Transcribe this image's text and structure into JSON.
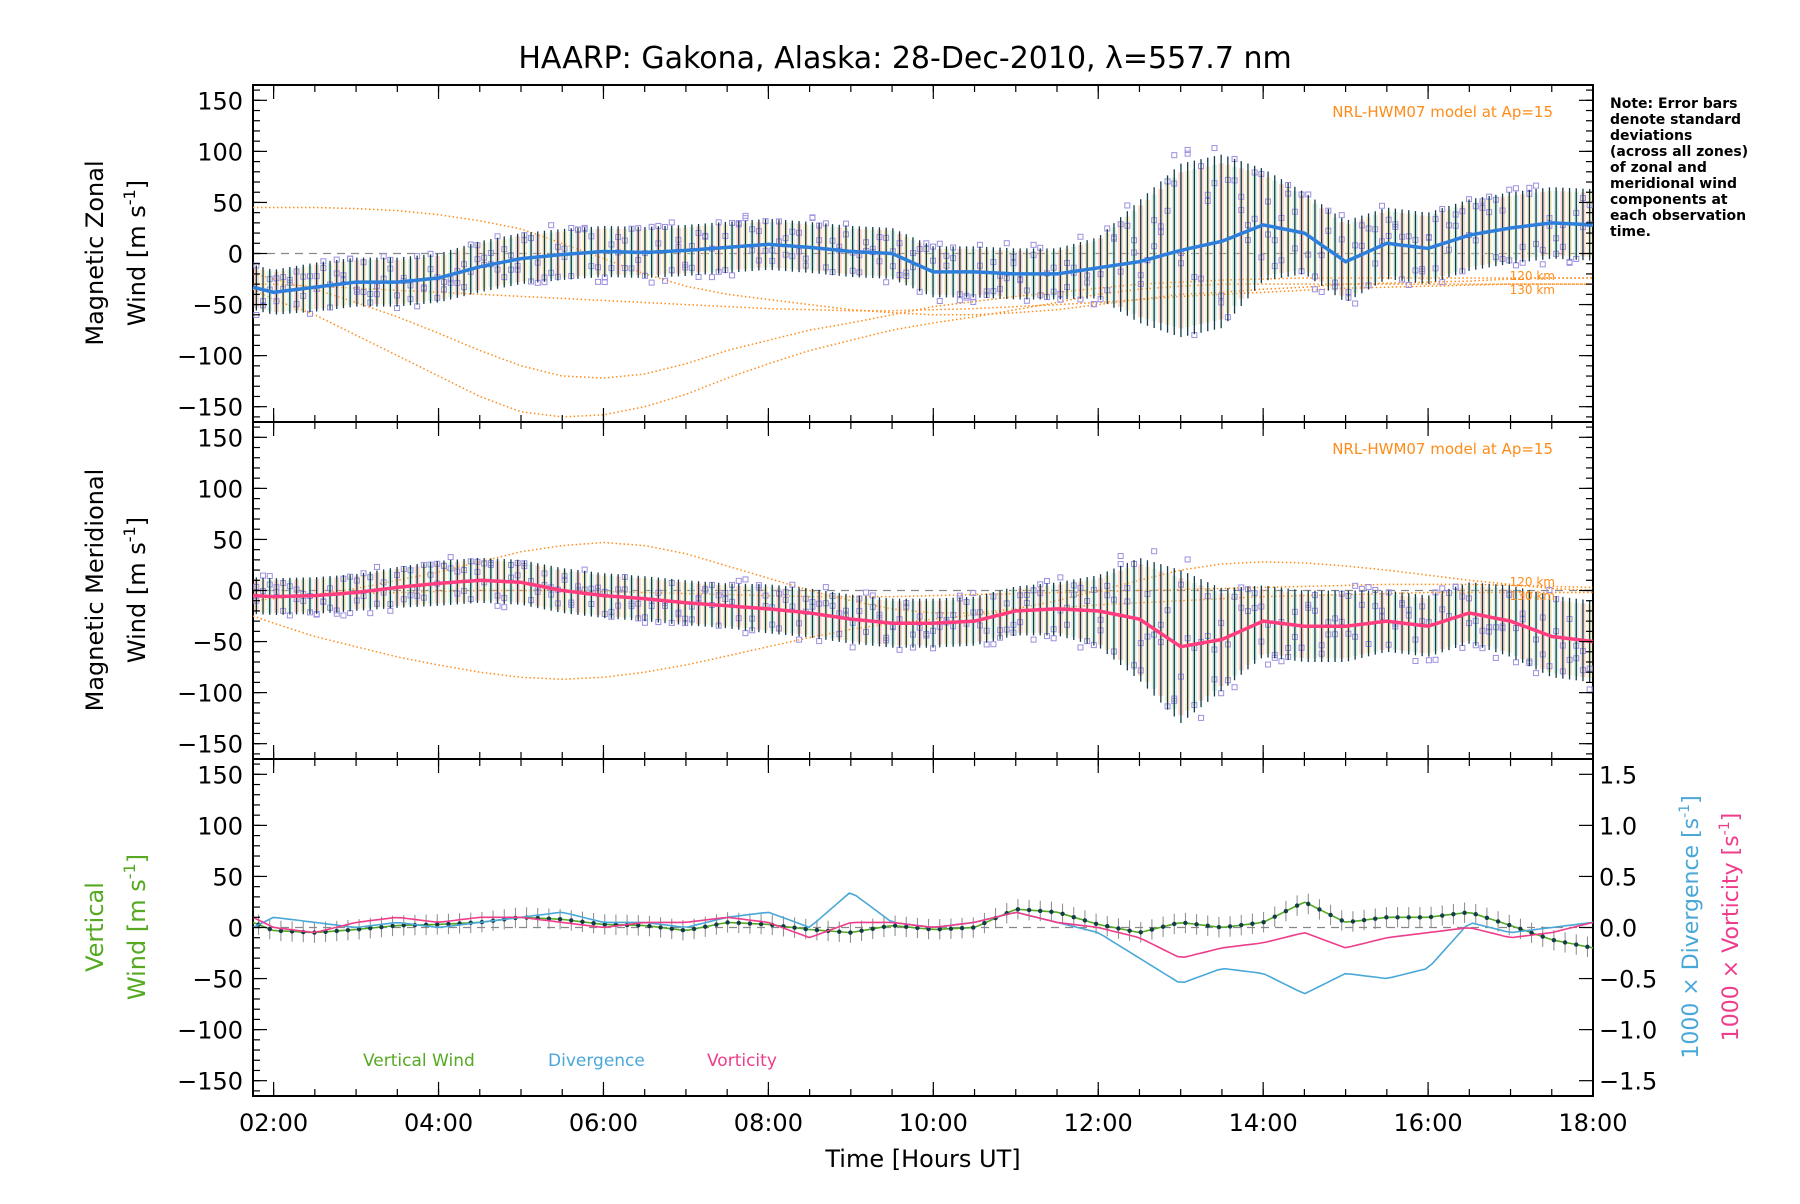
{
  "title": "HAARP: Gakona,  Alaska: 28-Dec-2010, λ=557.7 nm",
  "note": [
    "Note: Error bars",
    "denote standard",
    "deviations",
    "(across all zones)",
    "of zonal and",
    "meridional wind",
    "components at",
    "each observation",
    "time."
  ],
  "x_axis": {
    "label": "Time [Hours UT]",
    "range_hours": [
      1.75,
      18.0
    ],
    "ticks": [
      2,
      4,
      6,
      8,
      10,
      12,
      14,
      16,
      18
    ],
    "tick_labels": [
      "02:00",
      "04:00",
      "06:00",
      "08:00",
      "10:00",
      "12:00",
      "14:00",
      "16:00",
      "18:00"
    ]
  },
  "panels": {
    "zonal": {
      "ylabel_line1": "Magnetic Zonal",
      "ylabel_line2": "Wind [m s",
      "ylabel_sup": "-1",
      "ylabel_close": "]",
      "model_label": "NRL-HWM07 model at Ap=15",
      "model_alt_labels": [
        "120 km",
        "130 km"
      ]
    },
    "meridional": {
      "ylabel_line1": "Magnetic Meridional",
      "ylabel_line2": "Wind [m s",
      "ylabel_sup": "-1",
      "ylabel_close": "]",
      "model_label": "NRL-HWM07 model at Ap=15",
      "model_alt_labels": [
        "120 km",
        "130 km"
      ]
    },
    "vertical": {
      "ylabel_line1": "Vertical",
      "ylabel_line2": "Wind [m s",
      "ylabel_sup": "-1",
      "ylabel_close": "]",
      "right_label_div": "1000 × Divergence [s",
      "right_label_vort": "1000 × Vorticity [s",
      "right_sup": "-1",
      "right_close": "]",
      "legend": [
        "Vertical Wind",
        "Divergence",
        "Vorticity"
      ]
    }
  },
  "y_ticks": [
    150,
    100,
    50,
    0,
    -50,
    -100,
    -150
  ],
  "y_tick_labels": [
    "150",
    "100",
    "50",
    "0",
    "−50",
    "−100",
    "−150"
  ],
  "right_ticks": [
    1.5,
    1.0,
    0.5,
    0.0,
    -0.5,
    -1.0,
    -1.5
  ],
  "right_tick_labels": [
    "1.5",
    "1.0",
    "0.5",
    "0.0",
    "−0.5",
    "−1.0",
    "−1.5"
  ],
  "colors": {
    "zonal": "#2e7fdb",
    "meridional": "#ff3d7f",
    "vertical": "#55aa22",
    "divergence": "#4aa8d8",
    "vorticity": "#ee3d8a",
    "model": "#ff8c1a",
    "scatter": "#9c90e0",
    "errorbar": "#123c4a"
  },
  "chart_data": [
    {
      "type": "line",
      "panel": "zonal",
      "ylim": [
        -165,
        165
      ],
      "x_hours": [
        1.75,
        2.0,
        2.5,
        3.0,
        3.5,
        4.0,
        4.5,
        5.0,
        5.5,
        6.0,
        6.5,
        7.0,
        7.5,
        8.0,
        8.5,
        9.0,
        9.5,
        10.0,
        10.5,
        11.0,
        11.5,
        12.0,
        12.5,
        13.0,
        13.5,
        14.0,
        14.5,
        15.0,
        15.5,
        16.0,
        16.5,
        17.0,
        17.5,
        18.0
      ],
      "series": [
        {
          "name": "",
          "role": "mean wind",
          "values": [
            -33,
            -38,
            -33,
            -28,
            -28,
            -24,
            -13,
            -5,
            -1,
            2,
            1,
            3,
            6,
            9,
            6,
            2,
            0,
            -18,
            -18,
            -20,
            -20,
            -14,
            -8,
            3,
            12,
            28,
            20,
            -8,
            10,
            5,
            18,
            25,
            30,
            28
          ]
        },
        {
          "name": "",
          "role": "error bar",
          "values": [
            22,
            22,
            24,
            24,
            24,
            24,
            25,
            25,
            25,
            25,
            25,
            25,
            25,
            25,
            25,
            25,
            25,
            25,
            25,
            25,
            25,
            30,
            60,
            85,
            85,
            55,
            40,
            40,
            35,
            35,
            35,
            35,
            35,
            35
          ]
        }
      ],
      "model_curves": [
        {
          "label": "",
          "values": [
            45,
            45,
            45,
            44,
            42,
            38,
            32,
            24,
            10,
            -5,
            -20,
            -32,
            -40,
            -45,
            -50,
            -55,
            -58,
            -60,
            -60,
            -58,
            -55,
            -50,
            -45,
            -40,
            -38,
            -35,
            -33,
            -30,
            -29,
            -28,
            -27,
            -25,
            -24,
            -24
          ]
        },
        {
          "label": "",
          "values": [
            -35,
            -45,
            -60,
            -80,
            -100,
            -120,
            -140,
            -155,
            -160,
            -158,
            -150,
            -138,
            -122,
            -108,
            -95,
            -85,
            -75,
            -68,
            -62,
            -55,
            -48,
            -40,
            -35,
            -32,
            -30,
            -30,
            -30,
            -30,
            -30,
            -30,
            -30,
            -30,
            -30,
            -30
          ]
        },
        {
          "label": "",
          "values": [
            -20,
            -25,
            -35,
            -48,
            -62,
            -78,
            -95,
            -110,
            -120,
            -122,
            -118,
            -108,
            -95,
            -85,
            -75,
            -68,
            -60,
            -52,
            -47,
            -42,
            -38,
            -34,
            -30,
            -28,
            -26,
            -25,
            -24,
            -24,
            -24,
            -24,
            -24,
            -24,
            -24,
            -24
          ]
        },
        {
          "label": "",
          "values": [
            -30,
            -30,
            -32,
            -34,
            -36,
            -38,
            -40,
            -42,
            -44,
            -46,
            -48,
            -50,
            -52,
            -54,
            -55,
            -56,
            -56,
            -55,
            -54,
            -52,
            -50,
            -48,
            -45,
            -42,
            -40,
            -38,
            -36,
            -34,
            -33,
            -32,
            -31,
            -30,
            -30,
            -30
          ]
        }
      ]
    },
    {
      "type": "line",
      "panel": "meridional",
      "ylim": [
        -165,
        165
      ],
      "x_hours": [
        1.75,
        2.0,
        2.5,
        3.0,
        3.5,
        4.0,
        4.5,
        5.0,
        5.5,
        6.0,
        6.5,
        7.0,
        7.5,
        8.0,
        8.5,
        9.0,
        9.5,
        10.0,
        10.5,
        11.0,
        11.5,
        12.0,
        12.5,
        13.0,
        13.5,
        14.0,
        14.5,
        15.0,
        15.5,
        16.0,
        16.5,
        17.0,
        17.5,
        18.0
      ],
      "series": [
        {
          "name": "",
          "role": "mean wind",
          "values": [
            -5,
            -6,
            -5,
            -2,
            3,
            7,
            10,
            8,
            0,
            -5,
            -8,
            -12,
            -15,
            -18,
            -22,
            -28,
            -32,
            -32,
            -30,
            -20,
            -18,
            -20,
            -28,
            -55,
            -48,
            -30,
            -35,
            -35,
            -30,
            -35,
            -22,
            -30,
            -45,
            -50
          ]
        },
        {
          "name": "",
          "role": "error bar",
          "values": [
            18,
            18,
            18,
            18,
            20,
            22,
            22,
            22,
            22,
            22,
            22,
            22,
            22,
            24,
            24,
            24,
            24,
            24,
            24,
            24,
            26,
            35,
            60,
            75,
            50,
            35,
            35,
            35,
            30,
            30,
            30,
            35,
            40,
            40
          ]
        }
      ],
      "model_curves": [
        {
          "label": "",
          "values": [
            -25,
            -32,
            -45,
            -55,
            -65,
            -73,
            -80,
            -85,
            -87,
            -85,
            -80,
            -73,
            -64,
            -55,
            -46,
            -38,
            -32,
            -28,
            -24,
            -20,
            -17,
            -14,
            -12,
            -10,
            -8,
            -6,
            -5,
            -4,
            -3,
            -2,
            -2,
            -2,
            -2,
            -2
          ]
        },
        {
          "label": "",
          "values": [
            -10,
            -8,
            -4,
            2,
            10,
            18,
            28,
            38,
            44,
            47,
            44,
            36,
            24,
            12,
            0,
            -10,
            -18,
            -22,
            -22,
            -18,
            -10,
            0,
            10,
            20,
            26,
            28,
            27,
            24,
            20,
            15,
            10,
            6,
            2,
            0
          ]
        },
        {
          "label": "",
          "values": [
            -5,
            -5,
            -4,
            -3,
            -2,
            -1,
            0,
            0,
            0,
            -1,
            -2,
            -3,
            -4,
            -5,
            -6,
            -6,
            -6,
            -5,
            -4,
            -3,
            -2,
            -1,
            0,
            1,
            2,
            3,
            4,
            5,
            6,
            6,
            6,
            5,
            4,
            3
          ]
        }
      ]
    },
    {
      "type": "line",
      "panel": "vertical",
      "ylim": [
        -165,
        165
      ],
      "right_ylim": [
        -1.65,
        1.65
      ],
      "x_hours": [
        1.75,
        2.0,
        2.5,
        3.0,
        3.5,
        4.0,
        4.5,
        5.0,
        5.5,
        6.0,
        6.5,
        7.0,
        7.5,
        8.0,
        8.5,
        9.0,
        9.5,
        10.0,
        10.5,
        11.0,
        11.5,
        12.0,
        12.5,
        13.0,
        13.5,
        14.0,
        14.5,
        15.0,
        15.5,
        16.0,
        16.5,
        17.0,
        17.5,
        18.0
      ],
      "series": [
        {
          "name": "Vertical Wind",
          "axis": "left",
          "values": [
            5,
            -3,
            -5,
            -2,
            2,
            3,
            5,
            10,
            8,
            3,
            2,
            -3,
            5,
            3,
            -2,
            -5,
            2,
            -2,
            0,
            18,
            15,
            3,
            -5,
            5,
            0,
            5,
            25,
            5,
            10,
            10,
            15,
            2,
            -12,
            -20
          ]
        },
        {
          "name": "Divergence",
          "axis": "right",
          "values": [
            0.0,
            0.1,
            0.05,
            0.0,
            0.05,
            0.0,
            0.05,
            0.1,
            0.15,
            0.05,
            0.05,
            0.0,
            0.1,
            0.15,
            0.0,
            0.35,
            0.05,
            0.0,
            0.05,
            0.15,
            0.05,
            -0.05,
            -0.3,
            -0.55,
            -0.4,
            -0.45,
            -0.65,
            -0.45,
            -0.5,
            -0.4,
            0.05,
            -0.05,
            0.0,
            0.05
          ]
        },
        {
          "name": "Vorticity",
          "axis": "right",
          "values": [
            0.1,
            0.0,
            -0.05,
            0.05,
            0.1,
            0.05,
            0.1,
            0.1,
            0.05,
            0.0,
            0.05,
            0.05,
            0.1,
            0.05,
            -0.1,
            0.05,
            0.05,
            0.0,
            0.05,
            0.15,
            0.05,
            0.0,
            -0.1,
            -0.3,
            -0.2,
            -0.15,
            -0.05,
            -0.2,
            -0.1,
            -0.05,
            0.0,
            -0.1,
            -0.05,
            0.05
          ]
        }
      ]
    }
  ]
}
